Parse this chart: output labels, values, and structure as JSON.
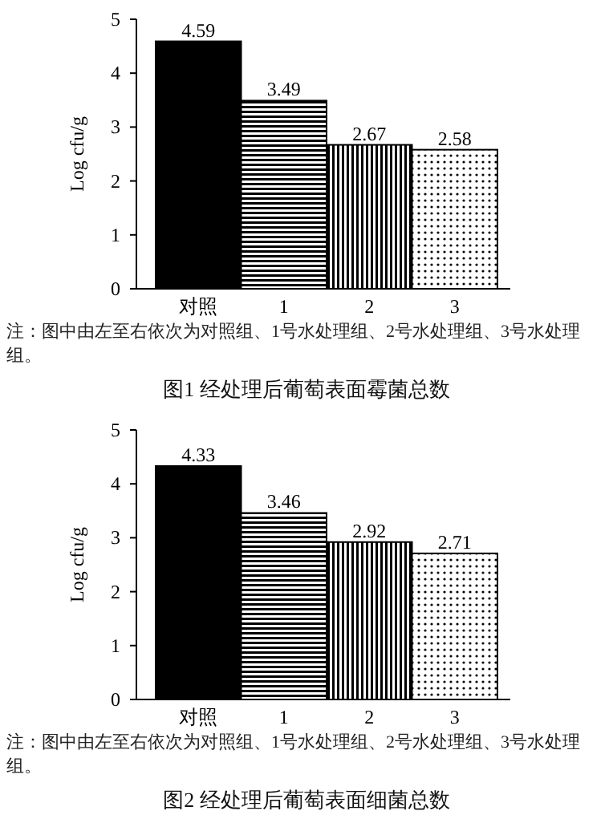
{
  "chart_data": [
    {
      "type": "bar",
      "title": "图1  经处理后葡萄表面霉菌总数",
      "ylabel": "Log cfu/g",
      "categories": [
        "对照",
        "1",
        "2",
        "3"
      ],
      "values": [
        4.59,
        3.49,
        2.67,
        2.58
      ],
      "colors": [
        "#000000",
        "#000000",
        "#000000",
        "#000000"
      ],
      "ylim": [
        0,
        5
      ],
      "yticks": [
        0,
        1,
        2,
        3,
        4,
        5
      ],
      "data_labels": true,
      "annotations": [
        "注：图中由左至右依次为对照组、1号水处理组、2号水处理组、3号水处理组。"
      ]
    },
    {
      "type": "bar",
      "title": "图2  经处理后葡萄表面细菌总数",
      "ylabel": "Log cfu/g",
      "categories": [
        "对照",
        "1",
        "2",
        "3"
      ],
      "values": [
        4.33,
        3.46,
        2.92,
        2.71
      ],
      "colors": [
        "#000000",
        "#000000",
        "#000000",
        "#000000"
      ],
      "ylim": [
        0,
        5
      ],
      "yticks": [
        0,
        1,
        2,
        3,
        4,
        5
      ],
      "data_labels": true,
      "annotations": [
        "注：图中由左至右依次为对照组、1号水处理组、2号水处理组、3号水处理组。"
      ]
    }
  ]
}
